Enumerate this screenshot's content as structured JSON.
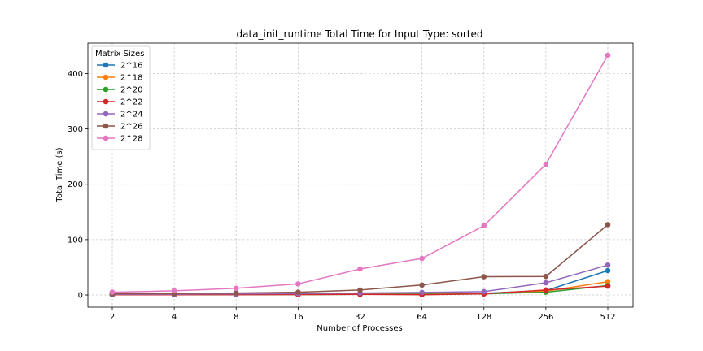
{
  "chart_data": {
    "type": "line",
    "title": "data_init_runtime Total Time for Input Type: sorted",
    "xlabel": "Number of Processes",
    "ylabel": "Total Time (s)",
    "categories": [
      "2",
      "4",
      "8",
      "16",
      "32",
      "64",
      "128",
      "256",
      "512"
    ],
    "yticks": [
      0,
      100,
      200,
      300,
      400
    ],
    "ylim": [
      -22,
      455
    ],
    "grid": true,
    "legend": {
      "title": "Matrix Sizes",
      "placement": "top-left"
    },
    "series": [
      {
        "name": "2^16",
        "color": "#1f77b4",
        "values": [
          0.5,
          0.6,
          0.8,
          1.0,
          1.5,
          2.0,
          3.0,
          8.0,
          44.0
        ]
      },
      {
        "name": "2^18",
        "color": "#ff7f0e",
        "values": [
          0.5,
          0.6,
          0.8,
          1.0,
          1.5,
          1.5,
          2.5,
          7.0,
          24.0
        ]
      },
      {
        "name": "2^20",
        "color": "#2ca02c",
        "values": [
          0.4,
          0.5,
          0.7,
          0.8,
          1.0,
          1.0,
          2.0,
          5.0,
          17.0
        ]
      },
      {
        "name": "2^22",
        "color": "#d62728",
        "values": [
          0.4,
          0.5,
          0.6,
          0.8,
          1.0,
          0.5,
          2.0,
          9.0,
          16.0
        ]
      },
      {
        "name": "2^24",
        "color": "#9467bd",
        "values": [
          1.0,
          1.5,
          2.0,
          2.5,
          3.5,
          4.5,
          6.0,
          22.0,
          54.0
        ]
      },
      {
        "name": "2^26",
        "color": "#8c564b",
        "values": [
          2.0,
          2.5,
          3.5,
          5.0,
          9.0,
          18.0,
          33.0,
          33.5,
          127.0
        ]
      },
      {
        "name": "2^28",
        "color": "#e377c2",
        "values": [
          5.0,
          7.5,
          12.0,
          20.0,
          47.0,
          66.0,
          125.0,
          236.0,
          433.0
        ]
      }
    ]
  }
}
